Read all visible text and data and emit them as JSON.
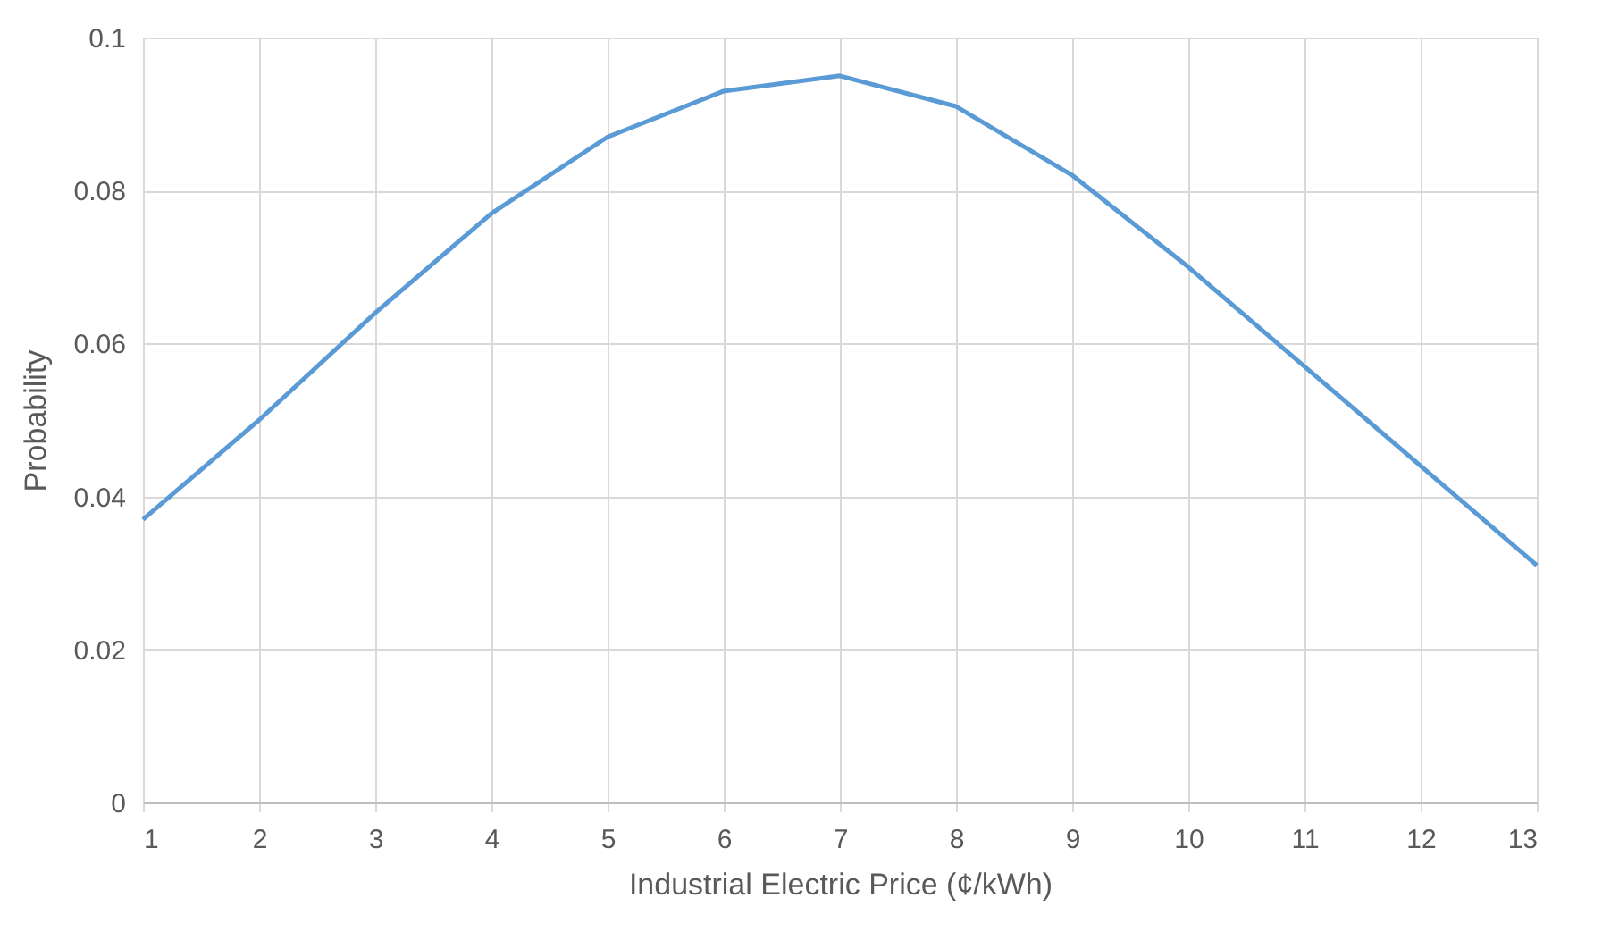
{
  "chart_data": {
    "type": "line",
    "xlabel": "Industrial Electric Price (¢/kWh)",
    "ylabel": "Probability",
    "x": [
      1,
      2,
      3,
      4,
      5,
      6,
      7,
      8,
      9,
      10,
      11,
      12,
      13
    ],
    "series": [
      {
        "color": "#5b9bd5",
        "values": [
          0.037,
          0.05,
          0.064,
          0.077,
          0.087,
          0.093,
          0.095,
          0.091,
          0.082,
          0.07,
          0.057,
          0.044,
          0.031
        ]
      }
    ],
    "xlim": [
      1,
      13
    ],
    "xticks": [
      1,
      2,
      3,
      4,
      5,
      6,
      7,
      8,
      9,
      10,
      11,
      12,
      13
    ],
    "ylim": [
      0,
      0.1
    ],
    "yticks": [
      {
        "value": 0,
        "label": "0"
      },
      0.02,
      0.04,
      0.06,
      0.08,
      {
        "value": 0.1,
        "label": "0.1"
      }
    ],
    "grid": true,
    "marker": "none",
    "line_style": "solid"
  }
}
